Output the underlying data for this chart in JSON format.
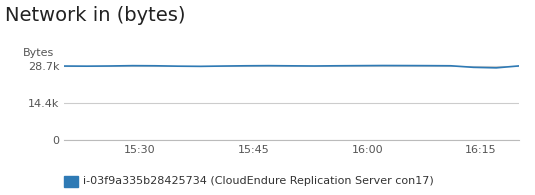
{
  "title": "Network in (bytes)",
  "ylabel": "Bytes",
  "yticks": [
    0,
    14400,
    28700
  ],
  "ytick_labels": [
    "0",
    "14.4k",
    "28.7k"
  ],
  "ylim": [
    0,
    33000
  ],
  "xtick_labels": [
    "15:30",
    "15:45",
    "16:00",
    "16:15"
  ],
  "xtick_positions": [
    10,
    25,
    40,
    55
  ],
  "xlim": [
    0,
    60
  ],
  "line_color": "#2e7ab5",
  "background_color": "#ffffff",
  "legend_label": "i-03f9a335b28425734 (CloudEndure Replication Server con17)",
  "legend_color": "#2e7ab5",
  "x_minutes": [
    0,
    3,
    6,
    9,
    12,
    15,
    18,
    21,
    24,
    27,
    30,
    33,
    36,
    39,
    42,
    45,
    48,
    51,
    54,
    57,
    60
  ],
  "y": [
    28600,
    28550,
    28620,
    28750,
    28700,
    28550,
    28480,
    28600,
    28700,
    28750,
    28680,
    28620,
    28700,
    28750,
    28800,
    28780,
    28750,
    28700,
    28100,
    27900,
    28650
  ]
}
